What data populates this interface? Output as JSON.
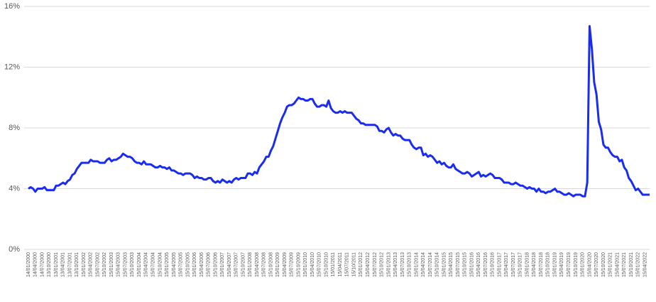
{
  "chart_data": {
    "type": "line",
    "categories": [
      "14/01/2000",
      null,
      null,
      "14/04/2000",
      null,
      null,
      "14/07/2000",
      null,
      null,
      "13/10/2000",
      null,
      null,
      "13/01/2001",
      null,
      null,
      "13/04/2001",
      null,
      null,
      "13/07/2001",
      null,
      null,
      "13/10/2001",
      null,
      null,
      "15/01/2002",
      null,
      null,
      "15/04/2002",
      null,
      null,
      "15/07/2002",
      null,
      null,
      "15/10/2002",
      null,
      null,
      "15/01/2003",
      null,
      null,
      "15/04/2003",
      null,
      null,
      "15/07/2003",
      null,
      null,
      "15/10/2003",
      null,
      null,
      "15/01/2004",
      null,
      null,
      "15/04/2004",
      null,
      null,
      "15/07/2004",
      null,
      null,
      "15/10/2004",
      null,
      null,
      "15/01/2005",
      null,
      null,
      "15/04/2005",
      null,
      null,
      "15/07/2005",
      null,
      null,
      "15/10/2005",
      null,
      null,
      "15/01/2006",
      null,
      null,
      "15/04/2006",
      null,
      null,
      "15/07/2006",
      null,
      null,
      "15/10/2006",
      null,
      null,
      "15/01/2007",
      null,
      null,
      "15/04/2007",
      null,
      null,
      "15/07/2007",
      null,
      null,
      "15/10/2007",
      null,
      null,
      "15/01/2008",
      null,
      null,
      "15/04/2008",
      null,
      null,
      "15/07/2008",
      null,
      null,
      "15/10/2008",
      null,
      null,
      "15/01/2009",
      null,
      null,
      "15/04/2009",
      null,
      null,
      "15/07/2009",
      null,
      null,
      "15/10/2009",
      null,
      null,
      "15/01/2010",
      null,
      null,
      "15/04/2010",
      null,
      null,
      "15/07/2010",
      null,
      null,
      "15/10/2010",
      null,
      null,
      "15/01/2011",
      null,
      null,
      "15/04/2011",
      null,
      null,
      "15/07/2011",
      null,
      null,
      "15/10/2011",
      null,
      null,
      "15/01/2012",
      null,
      null,
      "15/04/2012",
      null,
      null,
      "15/07/2012",
      null,
      null,
      "15/10/2012",
      null,
      null,
      "15/01/2013",
      null,
      null,
      "15/04/2013",
      null,
      null,
      "15/07/2013",
      null,
      null,
      "15/10/2013",
      null,
      null,
      "15/01/2014",
      null,
      null,
      "15/04/2014",
      null,
      null,
      "15/07/2014",
      null,
      null,
      "15/10/2014",
      null,
      null,
      "15/01/2015",
      null,
      null,
      "15/04/2015",
      null,
      null,
      "15/07/2015",
      null,
      null,
      "15/10/2015",
      null,
      null,
      "15/01/2016",
      null,
      null,
      "15/04/2016",
      null,
      null,
      "15/07/2016",
      null,
      null,
      "15/10/2016",
      null,
      null,
      "15/01/2017",
      null,
      null,
      "15/04/2017",
      null,
      null,
      "15/07/2017",
      null,
      null,
      "15/10/2017",
      null,
      null,
      "15/01/2018",
      null,
      null,
      "15/04/2018",
      null,
      null,
      "15/07/2018",
      null,
      null,
      "15/10/2018",
      null,
      null,
      "15/01/2019",
      null,
      null,
      "15/04/2019",
      null,
      null,
      "15/07/2019",
      null,
      null,
      "15/10/2019",
      null,
      null,
      "15/01/2020",
      null,
      null,
      "15/04/2020",
      null,
      null,
      "15/07/2020",
      null,
      null,
      "15/10/2020",
      null,
      null,
      "15/01/2021",
      null,
      null,
      "15/04/2021",
      null,
      null,
      "15/07/2021",
      null,
      null,
      "15/10/2021",
      null,
      null,
      "15/01/2022",
      null,
      null,
      "15/04/2022",
      null,
      null
    ],
    "values": [
      4.0,
      4.1,
      4.0,
      3.8,
      4.0,
      4.0,
      4.0,
      4.1,
      3.9,
      3.9,
      3.9,
      3.9,
      4.2,
      4.2,
      4.3,
      4.4,
      4.3,
      4.5,
      4.6,
      4.9,
      5.0,
      5.3,
      5.5,
      5.7,
      5.7,
      5.7,
      5.7,
      5.9,
      5.8,
      5.8,
      5.8,
      5.7,
      5.7,
      5.7,
      5.9,
      6.0,
      5.8,
      5.9,
      5.9,
      6.0,
      6.1,
      6.3,
      6.2,
      6.1,
      6.1,
      6.0,
      5.8,
      5.7,
      5.7,
      5.6,
      5.8,
      5.6,
      5.6,
      5.6,
      5.5,
      5.4,
      5.4,
      5.5,
      5.4,
      5.4,
      5.3,
      5.4,
      5.2,
      5.2,
      5.1,
      5.0,
      5.0,
      4.9,
      5.0,
      5.0,
      5.0,
      4.9,
      4.7,
      4.8,
      4.7,
      4.7,
      4.6,
      4.6,
      4.7,
      4.7,
      4.5,
      4.4,
      4.5,
      4.4,
      4.6,
      4.5,
      4.4,
      4.5,
      4.4,
      4.6,
      4.7,
      4.6,
      4.7,
      4.7,
      4.7,
      5.0,
      5.0,
      4.9,
      5.1,
      5.0,
      5.4,
      5.6,
      5.8,
      6.1,
      6.1,
      6.5,
      6.8,
      7.3,
      7.8,
      8.3,
      8.7,
      9.0,
      9.4,
      9.5,
      9.5,
      9.6,
      9.8,
      10.0,
      9.9,
      9.9,
      9.8,
      9.8,
      9.9,
      9.9,
      9.6,
      9.4,
      9.4,
      9.5,
      9.5,
      9.4,
      9.8,
      9.3,
      9.1,
      9.0,
      9.0,
      9.1,
      9.0,
      9.1,
      9.0,
      9.0,
      9.0,
      8.8,
      8.6,
      8.5,
      8.3,
      8.3,
      8.2,
      8.2,
      8.2,
      8.2,
      8.2,
      8.1,
      7.8,
      7.8,
      7.7,
      7.9,
      8.0,
      7.7,
      7.5,
      7.6,
      7.5,
      7.5,
      7.3,
      7.2,
      7.2,
      7.2,
      6.9,
      6.7,
      6.6,
      6.7,
      6.7,
      6.2,
      6.3,
      6.1,
      6.2,
      6.1,
      5.9,
      5.7,
      5.8,
      5.6,
      5.7,
      5.5,
      5.4,
      5.4,
      5.6,
      5.3,
      5.2,
      5.1,
      5.0,
      5.0,
      5.1,
      5.0,
      4.8,
      4.9,
      5.0,
      5.1,
      4.8,
      4.9,
      4.8,
      4.9,
      5.0,
      4.9,
      4.7,
      4.7,
      4.7,
      4.6,
      4.4,
      4.4,
      4.4,
      4.3,
      4.3,
      4.4,
      4.3,
      4.2,
      4.2,
      4.1,
      4.0,
      4.1,
      4.0,
      4.0,
      3.8,
      4.0,
      3.8,
      3.8,
      3.7,
      3.8,
      3.8,
      3.9,
      4.0,
      3.8,
      3.8,
      3.7,
      3.6,
      3.6,
      3.7,
      3.6,
      3.5,
      3.6,
      3.6,
      3.6,
      3.5,
      3.5,
      4.4,
      14.7,
      13.2,
      11.0,
      10.2,
      8.4,
      7.9,
      6.9,
      6.7,
      6.7,
      6.4,
      6.2,
      6.1,
      6.1,
      5.8,
      5.9,
      5.4,
      5.2,
      4.7,
      4.5,
      4.2,
      3.9,
      4.0,
      3.8,
      3.6,
      3.6,
      3.6,
      3.6
    ],
    "color": "#1a2cf0",
    "ylim": [
      0,
      16
    ],
    "yticks": [
      {
        "value": 0,
        "label": "0%"
      },
      {
        "value": 4,
        "label": "4%"
      },
      {
        "value": 8,
        "label": "8%"
      },
      {
        "value": 12,
        "label": "12%"
      },
      {
        "value": 16,
        "label": "16%"
      }
    ],
    "grid": true
  }
}
